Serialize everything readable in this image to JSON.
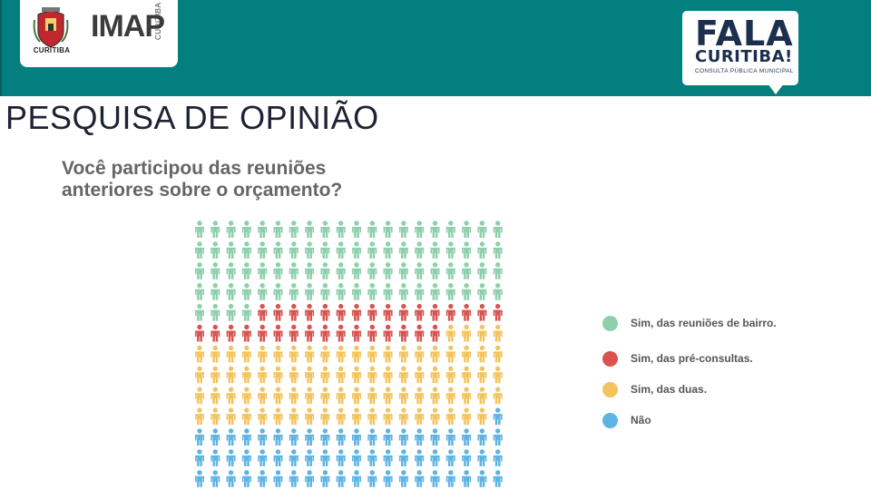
{
  "header": {
    "city_caption": "CURITIBA",
    "imap_logo_text": "IMAP",
    "imap_side_text": "CURITIBA",
    "campaign": {
      "line1": "FALA",
      "line2": "CURITIBA!",
      "line3": "CONSULTA PÚBLICA MUNICIPAL"
    }
  },
  "page": {
    "title": "PESQUISA DE OPINIÃO"
  },
  "colors": {
    "teal_band": "#047f80",
    "green": "#8ecfac",
    "red": "#d9534f",
    "yellow": "#f3c45e",
    "blue": "#5eb4e3"
  },
  "chart_data": {
    "type": "pictogram",
    "title_lines": [
      "Você participou das reuniões",
      "anteriores sobre o orçamento?"
    ],
    "grid": {
      "rows": 13,
      "cols": 20,
      "total": 260
    },
    "fill_order": "row-major",
    "series": [
      {
        "name": "Sim, das reuniões de bairro.",
        "count": 84,
        "color": "#8ecfac"
      },
      {
        "name": "Sim, das pré-consultas.",
        "count": 32,
        "color": "#d9534f"
      },
      {
        "name": "Sim, das duas.",
        "count": 83,
        "color": "#f3c45e"
      },
      {
        "name": "Não",
        "count": 61,
        "color": "#5eb4e3"
      }
    ],
    "legend_position": "right"
  }
}
